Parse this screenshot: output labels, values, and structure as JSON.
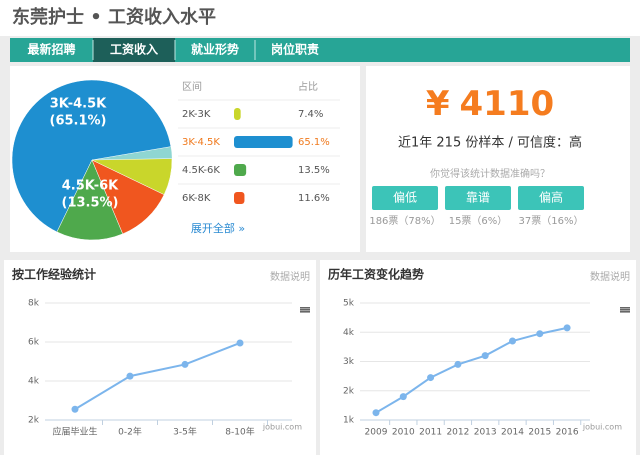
{
  "header": {
    "title": "东莞护士 • 工资收入水平"
  },
  "tabs": [
    "最新招聘",
    "工资收入",
    "就业形势",
    "岗位职责"
  ],
  "active_tab": 1,
  "distribution_table": {
    "headers": [
      "区间",
      "占比"
    ],
    "more_link": "展开全部 »"
  },
  "summary": {
    "currency": "¥",
    "salary": "4110",
    "sample_text": "近1年 215 份样本 / 可信度：高",
    "question": "你觉得该统计数据准确吗？",
    "buttons": [
      {
        "label": "偏低",
        "votes": "186票（78%）"
      },
      {
        "label": "靠谱",
        "votes": "15票（6%）"
      },
      {
        "label": "偏高",
        "votes": "37票（16%）"
      }
    ]
  },
  "chart_data": [
    {
      "type": "pie",
      "categories": [
        "2K-3K",
        "3K-4.5K",
        "4.5K-6K",
        "6K-8K"
      ],
      "values": [
        7.4,
        65.1,
        13.5,
        11.6
      ],
      "value_labels": [
        "7.4%",
        "65.1%",
        "13.5%",
        "11.6%"
      ],
      "colors": [
        "#c9d62b",
        "#1e8fd0",
        "#4fa94c",
        "#f0561f"
      ],
      "pie_labels": [
        null,
        "(65.1%)",
        "(13.5%)",
        null
      ],
      "highlight": 1
    },
    {
      "type": "line",
      "title": "按工作经验统计",
      "note": "数据说明",
      "watermark": "jobui.com",
      "categories": [
        "应届毕业生",
        "0-2年",
        "3-5年",
        "8-10年"
      ],
      "values": [
        2550,
        4250,
        4850,
        5950
      ],
      "color": "#7cb5ec",
      "ylim": [
        2000,
        8000
      ],
      "yticks": [
        {
          "value": 2000,
          "label": "2k"
        },
        {
          "value": 4000,
          "label": "4k"
        },
        {
          "value": 6000,
          "label": "6k"
        },
        {
          "value": 8000,
          "label": "8k"
        }
      ],
      "grid": true
    },
    {
      "type": "line",
      "title": "历年工资变化趋势",
      "note": "数据说明",
      "watermark": "jobui.com",
      "categories": [
        "2009",
        "2010",
        "2011",
        "2012",
        "2013",
        "2014",
        "2015",
        "2016"
      ],
      "values": [
        1250,
        1800,
        2450,
        2900,
        3200,
        3700,
        3950,
        4150
      ],
      "color": "#7cb5ec",
      "ylim": [
        1000,
        5000
      ],
      "yticks": [
        {
          "value": 1000,
          "label": "1k"
        },
        {
          "value": 2000,
          "label": "2k"
        },
        {
          "value": 3000,
          "label": "3k"
        },
        {
          "value": 4000,
          "label": "4k"
        },
        {
          "value": 5000,
          "label": "5k"
        }
      ],
      "grid": true
    }
  ]
}
